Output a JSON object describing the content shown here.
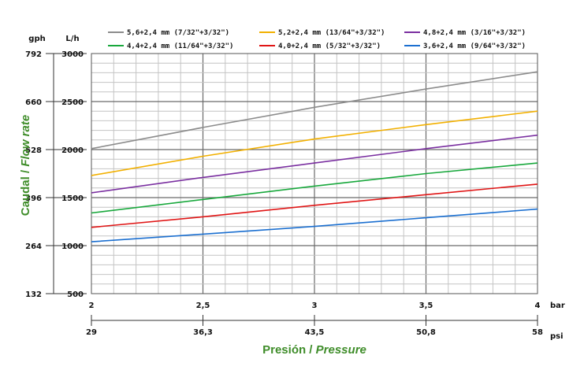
{
  "chart_data": {
    "type": "line",
    "x": [
      2,
      2.5,
      3,
      3.5,
      4
    ],
    "x_labels": [
      "2",
      "2,5",
      "3",
      "3,5",
      "4"
    ],
    "x_unit": "bar",
    "x2_labels": [
      "29",
      "36,3",
      "43,5",
      "50,8",
      "58"
    ],
    "x2_unit": "psi",
    "xlim": [
      2,
      4
    ],
    "ylim": [
      500,
      3000
    ],
    "y_ticks": [
      500,
      1000,
      1500,
      2000,
      2500,
      3000
    ],
    "y_unit": "L/h",
    "y2_ticks": [
      "132",
      "264",
      "396",
      "528",
      "660",
      "792"
    ],
    "y2_unit": "gph",
    "ylabel_main": "Caudal / ",
    "ylabel_italic": "Flow rate",
    "xlabel_main": "Presión / ",
    "xlabel_italic": "Pressure",
    "grid": true,
    "legend_position": "top",
    "series": [
      {
        "name": "5,6+2,4 mm (7/32\"+3/32\")",
        "color": "#8c8c8c",
        "values": [
          2010,
          2230,
          2440,
          2630,
          2810
        ]
      },
      {
        "name": "5,2+2,4 mm (13/64\"+3/32\")",
        "color": "#f2b000",
        "values": [
          1730,
          1930,
          2110,
          2260,
          2400
        ]
      },
      {
        "name": "4,8+2,4 mm (3/16\"+3/32\")",
        "color": "#7a2fa0",
        "values": [
          1550,
          1710,
          1860,
          2010,
          2150
        ]
      },
      {
        "name": "4,4+2,4 mm (11/64\"+3/32\")",
        "color": "#18a83c",
        "values": [
          1340,
          1480,
          1620,
          1750,
          1860
        ]
      },
      {
        "name": "4,0+2,4 mm (5/32\"+3/32\")",
        "color": "#e01515",
        "values": [
          1190,
          1300,
          1420,
          1530,
          1640
        ]
      },
      {
        "name": "3,6+2,4 mm (9/64\"+3/32\")",
        "color": "#1b6fd0",
        "values": [
          1040,
          1120,
          1200,
          1290,
          1380
        ]
      }
    ]
  }
}
